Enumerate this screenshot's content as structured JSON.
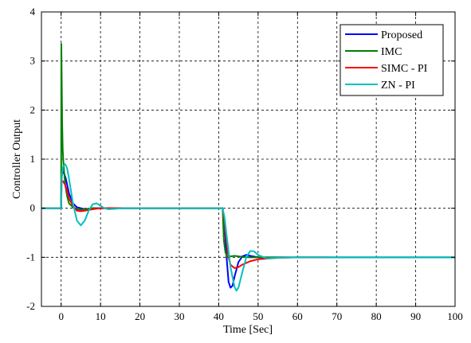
{
  "chart_data": {
    "type": "line",
    "title": "",
    "xlabel": "Time [Sec]",
    "ylabel": "Controller Output",
    "xlim": [
      -5,
      100
    ],
    "ylim": [
      -2,
      4
    ],
    "xticks": [
      0,
      10,
      20,
      30,
      40,
      50,
      60,
      70,
      80,
      90,
      100
    ],
    "yticks": [
      -2,
      -1,
      0,
      1,
      2,
      3,
      4
    ],
    "xtick_labels": [
      "0",
      "10",
      "20",
      "30",
      "40",
      "50",
      "60",
      "70",
      "80",
      "90",
      "100"
    ],
    "ytick_labels": [
      "-2",
      "-1",
      "0",
      "1",
      "2",
      "3",
      "4"
    ],
    "grid": true,
    "legend_position": "top-right",
    "series": [
      {
        "name": "Proposed",
        "color": "#0000ff",
        "x": [
          -5,
          0,
          0.05,
          0.3,
          0.8,
          1.2,
          2,
          3,
          4,
          6,
          8,
          10,
          41,
          41.5,
          42,
          42.5,
          43,
          43.5,
          44,
          45,
          46,
          47,
          48,
          50,
          55,
          100
        ],
        "y": [
          0,
          0,
          0.55,
          0.75,
          0.7,
          0.6,
          0.3,
          0.1,
          0.02,
          -0.02,
          0,
          0,
          0,
          -0.35,
          -1.0,
          -1.5,
          -1.62,
          -1.58,
          -1.4,
          -1.1,
          -0.98,
          -0.95,
          -0.97,
          -1.0,
          -1.0,
          -1.0
        ]
      },
      {
        "name": "IMC",
        "color": "#008000",
        "x": [
          -5,
          0,
          0.05,
          0.15,
          0.25,
          0.4,
          0.6,
          0.8,
          1,
          1.5,
          2,
          3,
          4,
          5,
          6,
          8,
          41,
          41.3,
          41.7,
          42.2,
          43,
          44,
          46,
          48,
          50,
          100
        ],
        "y": [
          0,
          0,
          3.35,
          2.6,
          1.8,
          1.2,
          0.9,
          0.7,
          0.5,
          0.25,
          0.1,
          0.02,
          -0.02,
          -0.03,
          -0.02,
          0,
          0,
          -0.65,
          -0.9,
          -1.0,
          -0.98,
          -0.97,
          -0.99,
          -1.0,
          -1.0,
          -1.0
        ]
      },
      {
        "name": "SIMC - PI",
        "color": "#ff0000",
        "x": [
          -5,
          0,
          0.1,
          0.5,
          1,
          1.5,
          2,
          3,
          4,
          5,
          6,
          8,
          10,
          41,
          41.5,
          42,
          42.5,
          43,
          44,
          45,
          46,
          48,
          50,
          55,
          60,
          68
        ],
        "y": [
          0,
          0,
          0.55,
          0.55,
          0.48,
          0.35,
          0.2,
          0.05,
          -0.05,
          -0.06,
          -0.05,
          -0.02,
          0,
          0,
          -0.28,
          -0.7,
          -1.0,
          -1.15,
          -1.22,
          -1.2,
          -1.15,
          -1.08,
          -1.04,
          -1.01,
          -1.0,
          -1.0
        ]
      },
      {
        "name": "ZN - PI",
        "color": "#00c0c0",
        "x": [
          -5,
          0,
          0.2,
          0.5,
          1,
          1.5,
          2,
          3,
          4,
          5,
          6,
          7,
          8,
          9,
          10,
          11,
          12,
          14,
          16,
          41,
          41.5,
          42,
          43,
          44,
          44.5,
          45,
          46,
          47,
          48,
          49,
          50,
          52,
          55,
          60,
          100
        ],
        "y": [
          0,
          0,
          0.7,
          0.85,
          0.9,
          0.82,
          0.6,
          0.1,
          -0.25,
          -0.35,
          -0.25,
          -0.05,
          0.08,
          0.1,
          0.05,
          0.0,
          -0.02,
          -0.01,
          0,
          0,
          -0.2,
          -0.55,
          -1.2,
          -1.6,
          -1.68,
          -1.62,
          -1.3,
          -1.0,
          -0.87,
          -0.88,
          -0.95,
          -1.02,
          -1.01,
          -1.0,
          -1.0
        ]
      }
    ]
  }
}
